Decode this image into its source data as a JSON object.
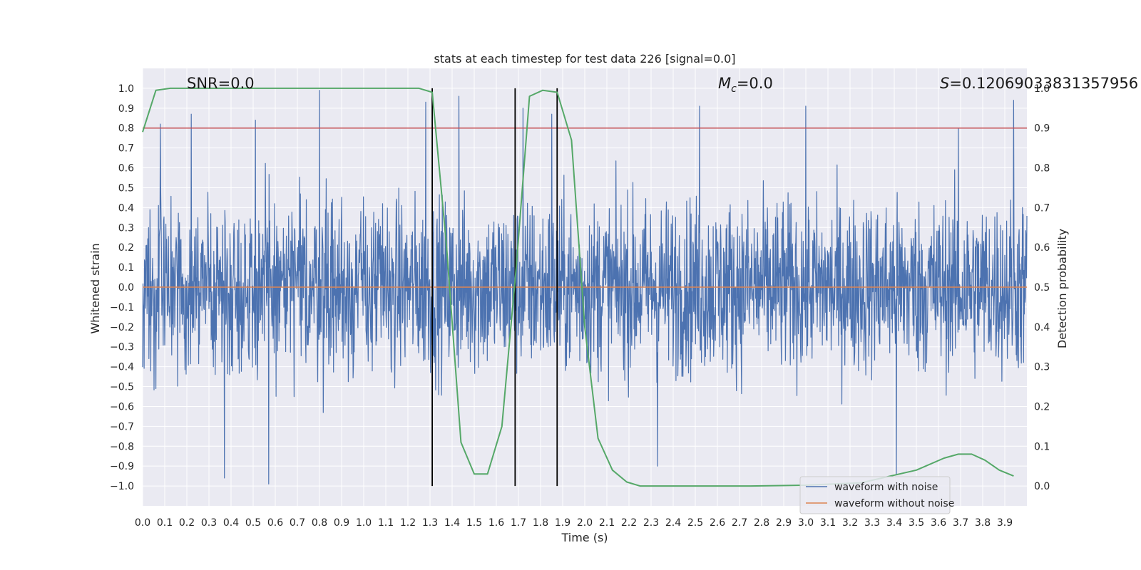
{
  "chart_data": {
    "type": "line",
    "title": "stats at each timestep for test data 226 [signal=0.0]",
    "xlabel": "Time (s)",
    "ylabel": "Whitened strain",
    "ylabel_right": "Detection probability",
    "xlim": [
      0.0,
      4.0
    ],
    "ylim": [
      -1.1,
      1.1
    ],
    "ylim_right": [
      -0.05,
      1.05
    ],
    "x_ticks": [
      0.0,
      0.1,
      0.2,
      0.3,
      0.4,
      0.5,
      0.6,
      0.7,
      0.8,
      0.9,
      1.0,
      1.1,
      1.2,
      1.3,
      1.4,
      1.5,
      1.6,
      1.7,
      1.8,
      1.9,
      2.0,
      2.1,
      2.2,
      2.3,
      2.4,
      2.5,
      2.6,
      2.7,
      2.8,
      2.9,
      3.0,
      3.1,
      3.2,
      3.3,
      3.4,
      3.5,
      3.6,
      3.7,
      3.8,
      3.9
    ],
    "x_tick_labels": [
      "0.0",
      "0.1",
      "0.2",
      "0.3",
      "0.4",
      "0.5",
      "0.6",
      "0.7",
      "0.8",
      "0.9",
      "1.0",
      "1.1",
      "1.2",
      "1.3",
      "1.4",
      "1.5",
      "1.6",
      "1.7",
      "1.8",
      "1.9",
      "2.0",
      "2.1",
      "2.2",
      "2.3",
      "2.4",
      "2.5",
      "2.6",
      "2.7",
      "2.8",
      "2.9",
      "3.0",
      "3.1",
      "3.2",
      "3.3",
      "3.4",
      "3.5",
      "3.6",
      "3.7",
      "3.8",
      "3.9"
    ],
    "y_ticks": [
      1.0,
      0.9,
      0.8,
      0.7,
      0.6,
      0.5,
      0.4,
      0.3,
      0.2,
      0.1,
      0.0,
      -0.1,
      -0.2,
      -0.3,
      -0.4,
      -0.5,
      -0.6,
      -0.7,
      -0.8,
      -0.9,
      -1.0
    ],
    "y_tick_labels": [
      "1.0",
      "0.9",
      "0.8",
      "0.7",
      "0.6",
      "0.5",
      "0.4",
      "0.3",
      "0.2",
      "0.1",
      "0.0",
      "−0.1",
      "−0.2",
      "−0.3",
      "−0.4",
      "−0.5",
      "−0.6",
      "−0.7",
      "−0.8",
      "−0.9",
      "−1.0"
    ],
    "y_right_ticks": [
      1.0,
      0.9,
      0.8,
      0.7,
      0.6,
      0.5,
      0.4,
      0.3,
      0.2,
      0.1,
      0.0
    ],
    "y_right_tick_labels": [
      "1.0",
      "0.9",
      "0.8",
      "0.7",
      "0.6",
      "0.5",
      "0.4",
      "0.3",
      "0.2",
      "0.1",
      "0.0"
    ],
    "grid": true,
    "legend_position": "lower-right",
    "series": [
      {
        "name": "waveform with noise",
        "axis": "left",
        "color": "#4c72b0",
        "description_type": "dense noise",
        "typical_amplitude": 0.3,
        "peak_amplitude": 1.0,
        "peaks": [
          {
            "x": 0.08,
            "y": 0.82
          },
          {
            "x": 0.22,
            "y": 0.87
          },
          {
            "x": 0.37,
            "y": -0.96
          },
          {
            "x": 0.51,
            "y": 0.84
          },
          {
            "x": 0.57,
            "y": -0.99
          },
          {
            "x": 0.8,
            "y": 0.99
          },
          {
            "x": 1.28,
            "y": 0.93
          },
          {
            "x": 1.43,
            "y": 0.96
          },
          {
            "x": 1.72,
            "y": 0.9
          },
          {
            "x": 1.85,
            "y": 0.87
          },
          {
            "x": 2.33,
            "y": -0.9
          },
          {
            "x": 2.52,
            "y": 0.91
          },
          {
            "x": 3.0,
            "y": 0.91
          },
          {
            "x": 3.41,
            "y": -0.94
          },
          {
            "x": 3.69,
            "y": 0.8
          },
          {
            "x": 3.94,
            "y": 0.94
          }
        ]
      },
      {
        "name": "waveform without noise",
        "axis": "left",
        "color": "#dd8452",
        "x": [
          0.0,
          4.0
        ],
        "y": [
          0.0,
          0.0
        ]
      },
      {
        "name": "",
        "axis": "right",
        "color": "#55a868",
        "x": [
          0.0,
          0.06,
          0.125,
          0.25,
          0.5,
          0.75,
          1.0,
          1.25,
          1.31,
          1.375,
          1.44,
          1.5,
          1.56,
          1.625,
          1.69,
          1.75,
          1.81,
          1.875,
          1.94,
          2.0,
          2.06,
          2.125,
          2.19,
          2.25,
          2.5,
          2.75,
          3.0,
          3.25,
          3.5,
          3.625,
          3.69,
          3.75,
          3.81,
          3.875,
          3.94
        ],
        "y": [
          0.89,
          0.995,
          1.0,
          1.0,
          1.0,
          1.0,
          1.0,
          1.0,
          0.99,
          0.6,
          0.11,
          0.03,
          0.03,
          0.15,
          0.55,
          0.98,
          0.995,
          0.99,
          0.87,
          0.4,
          0.12,
          0.04,
          0.01,
          0.0,
          0.0,
          0.0,
          0.002,
          0.008,
          0.04,
          0.07,
          0.08,
          0.08,
          0.065,
          0.04,
          0.025
        ]
      }
    ],
    "threshold_line": {
      "axis": "right",
      "y": 0.9,
      "color": "#c44e52"
    },
    "vertical_lines": [
      1.31,
      1.685,
      1.875
    ],
    "annotations": [
      {
        "text": "SNR=0.0"
      },
      {
        "text_main": "M",
        "text_sub": "c",
        "text_rest": "=0.0"
      },
      {
        "text_main": "S",
        "text_rest": "=0.12069033831357956"
      }
    ]
  }
}
